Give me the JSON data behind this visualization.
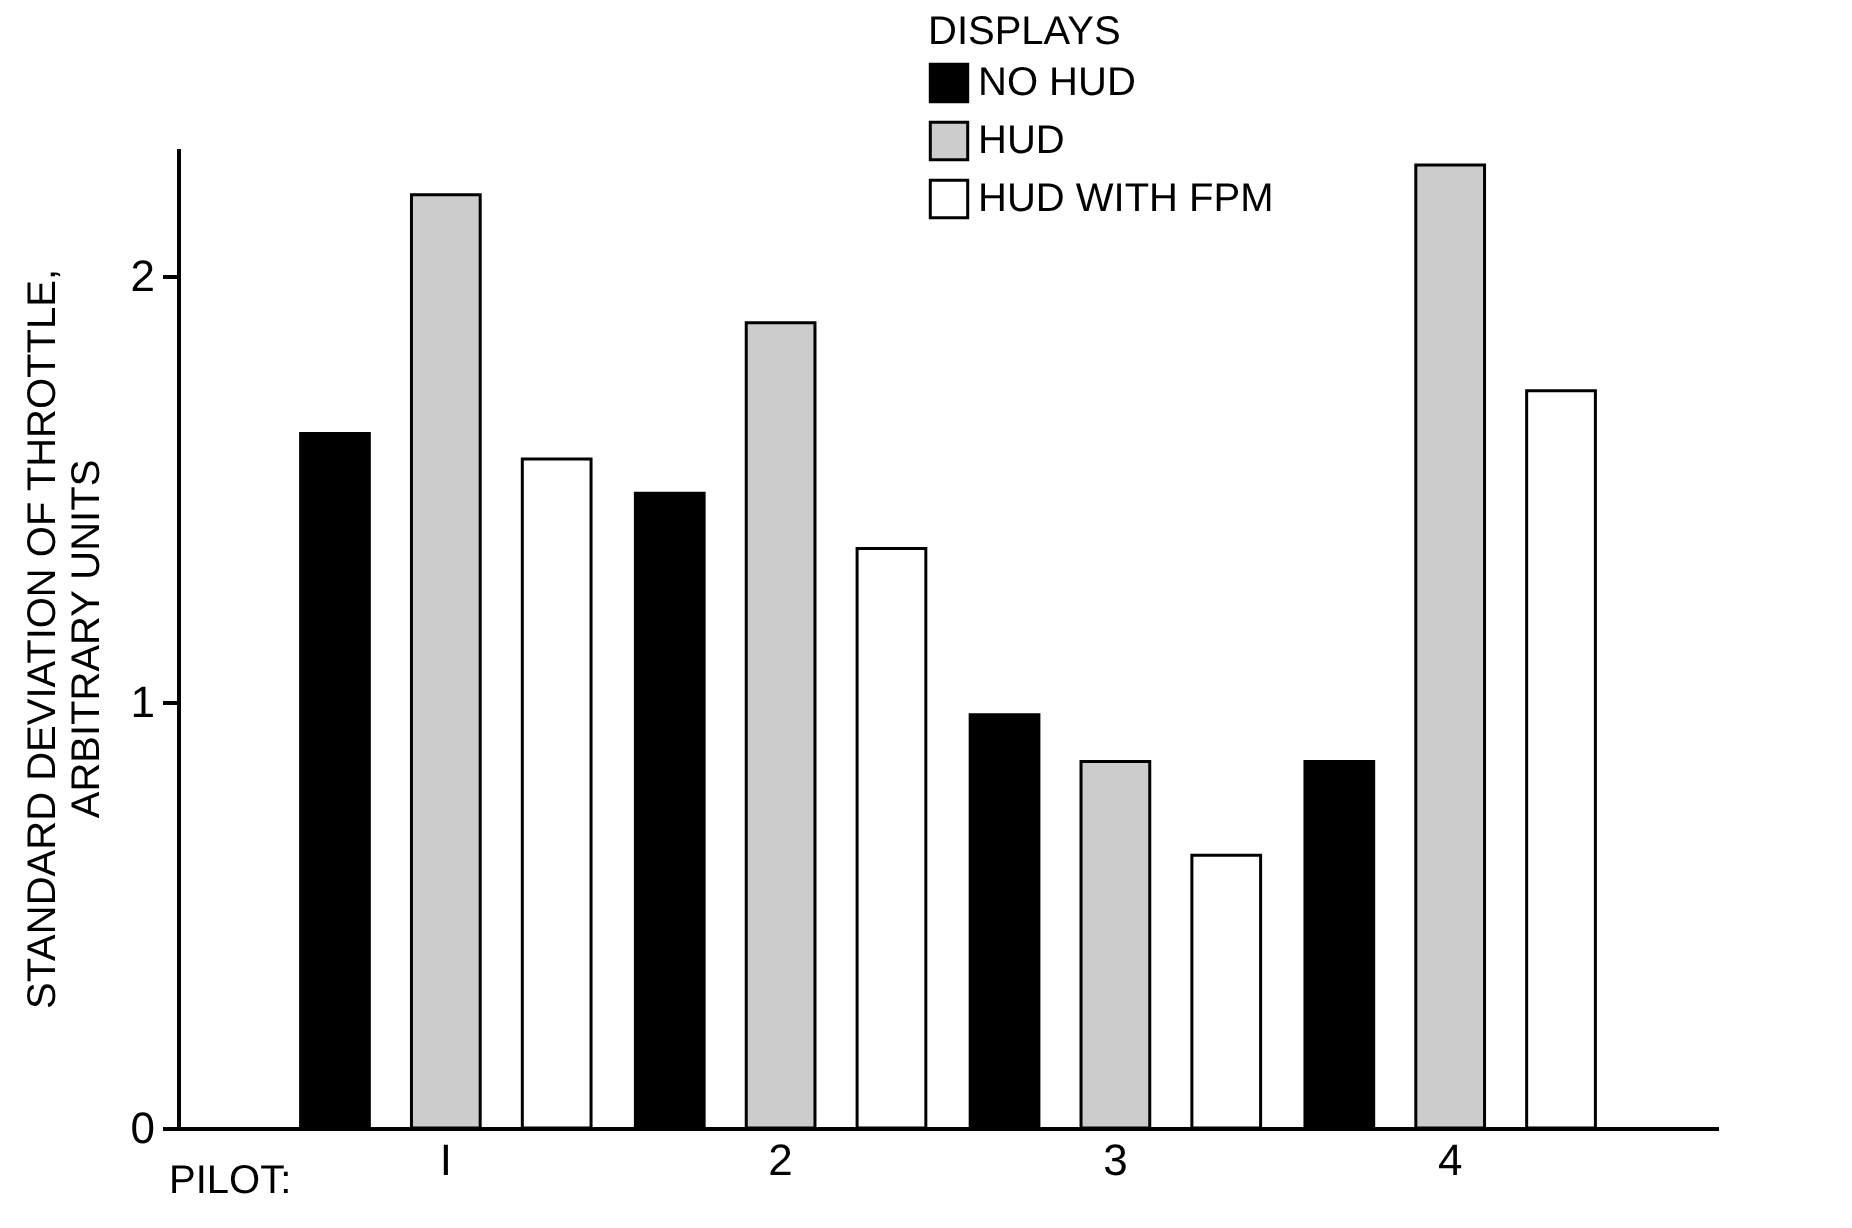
{
  "chart_data": {
    "type": "bar",
    "xlabel": "PILOT:",
    "ylabel": "STANDARD DEVIATION OF THROTTLE,\nARBITRARY UNITS",
    "legend_title": "DISPLAYS",
    "categories": [
      "I",
      "2",
      "3",
      "4"
    ],
    "series": [
      {
        "name": "NO HUD",
        "color": "#000000",
        "values": [
          1.63,
          1.49,
          0.97,
          0.86
        ]
      },
      {
        "name": "HUD",
        "color": "#cccccc",
        "values": [
          2.19,
          1.89,
          0.86,
          2.26
        ]
      },
      {
        "name": "HUD WITH FPM",
        "color": "#ffffff",
        "values": [
          1.57,
          1.36,
          0.64,
          1.73
        ]
      }
    ],
    "ylim": [
      0,
      2.3
    ],
    "yticks": [
      0,
      1,
      2
    ],
    "grid": false,
    "legend": "top right"
  }
}
